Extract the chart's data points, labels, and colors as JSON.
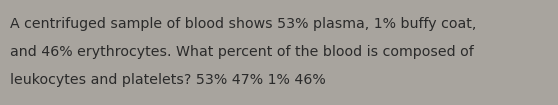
{
  "text_line1": "A centrifuged sample of blood shows 53% plasma, 1% buffy coat,",
  "text_line2": "and 46% erythrocytes. What percent of the blood is composed of",
  "text_line3": "leukocytes and platelets? 53% 47% 1% 46%",
  "background_color": "#a8a49e",
  "text_color": "#2b2b2b",
  "font_size": 10.2,
  "figsize": [
    5.58,
    1.05
  ],
  "dpi": 100
}
